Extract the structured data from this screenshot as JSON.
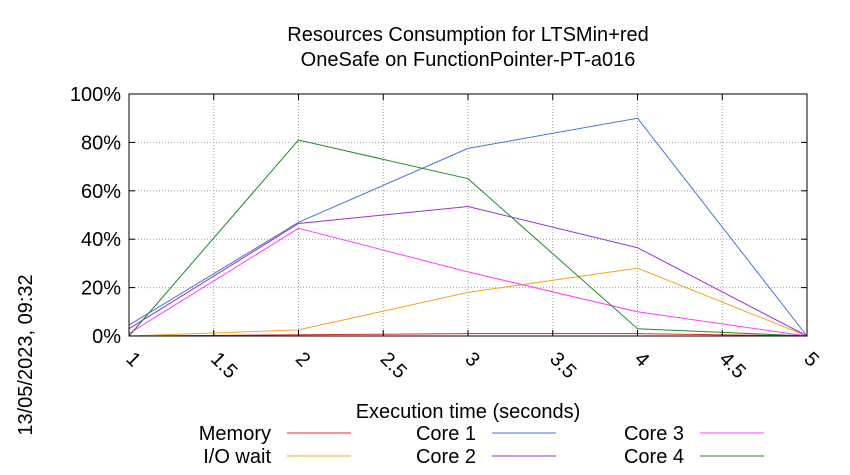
{
  "chart_data": {
    "type": "line",
    "title_lines": [
      "Resources Consumption for LTSMin+red",
      "OneSafe on FunctionPointer-PT-a016"
    ],
    "xlabel": "Execution time (seconds)",
    "ylabel": "",
    "side_label": "13/05/2023, 09:32",
    "xlim": [
      1,
      5
    ],
    "ylim": [
      0,
      100
    ],
    "x_ticks": [
      1,
      1.5,
      2,
      2.5,
      3,
      3.5,
      4,
      4.5,
      5
    ],
    "x_tick_labels": [
      "1",
      "1.5",
      "2",
      "2.5",
      "3",
      "3.5",
      "4",
      "4.5",
      "5"
    ],
    "y_ticks": [
      0,
      20,
      40,
      60,
      80,
      100
    ],
    "y_tick_labels": [
      "0%",
      "20%",
      "40%",
      "60%",
      "80%",
      "100%"
    ],
    "grid": true,
    "legend_position": "bottom",
    "series": [
      {
        "name": "Memory",
        "color": "#e8282a",
        "x": [
          1,
          2,
          3,
          4,
          5
        ],
        "y": [
          0,
          0.5,
          1,
          1,
          0
        ]
      },
      {
        "name": "I/O wait",
        "color": "#f5a623",
        "x": [
          1,
          2,
          3,
          4,
          5
        ],
        "y": [
          0,
          2.5,
          18,
          28,
          0
        ]
      },
      {
        "name": "Core 1",
        "color": "#4a74d6",
        "x": [
          1,
          2,
          3,
          4,
          5
        ],
        "y": [
          4.5,
          47,
          77.5,
          90,
          0
        ]
      },
      {
        "name": "Core 2",
        "color": "#9a2fd6",
        "x": [
          1,
          2,
          3,
          4,
          5
        ],
        "y": [
          3,
          46.5,
          53.5,
          36.5,
          0
        ]
      },
      {
        "name": "Core 3",
        "color": "#ff40ff",
        "x": [
          1,
          2,
          3,
          4,
          5
        ],
        "y": [
          1,
          44.5,
          26.5,
          10,
          0
        ]
      },
      {
        "name": "Core 4",
        "color": "#1f8a2c",
        "x": [
          1,
          2,
          3,
          4,
          5
        ],
        "y": [
          0,
          81,
          65,
          3,
          0
        ]
      }
    ]
  }
}
